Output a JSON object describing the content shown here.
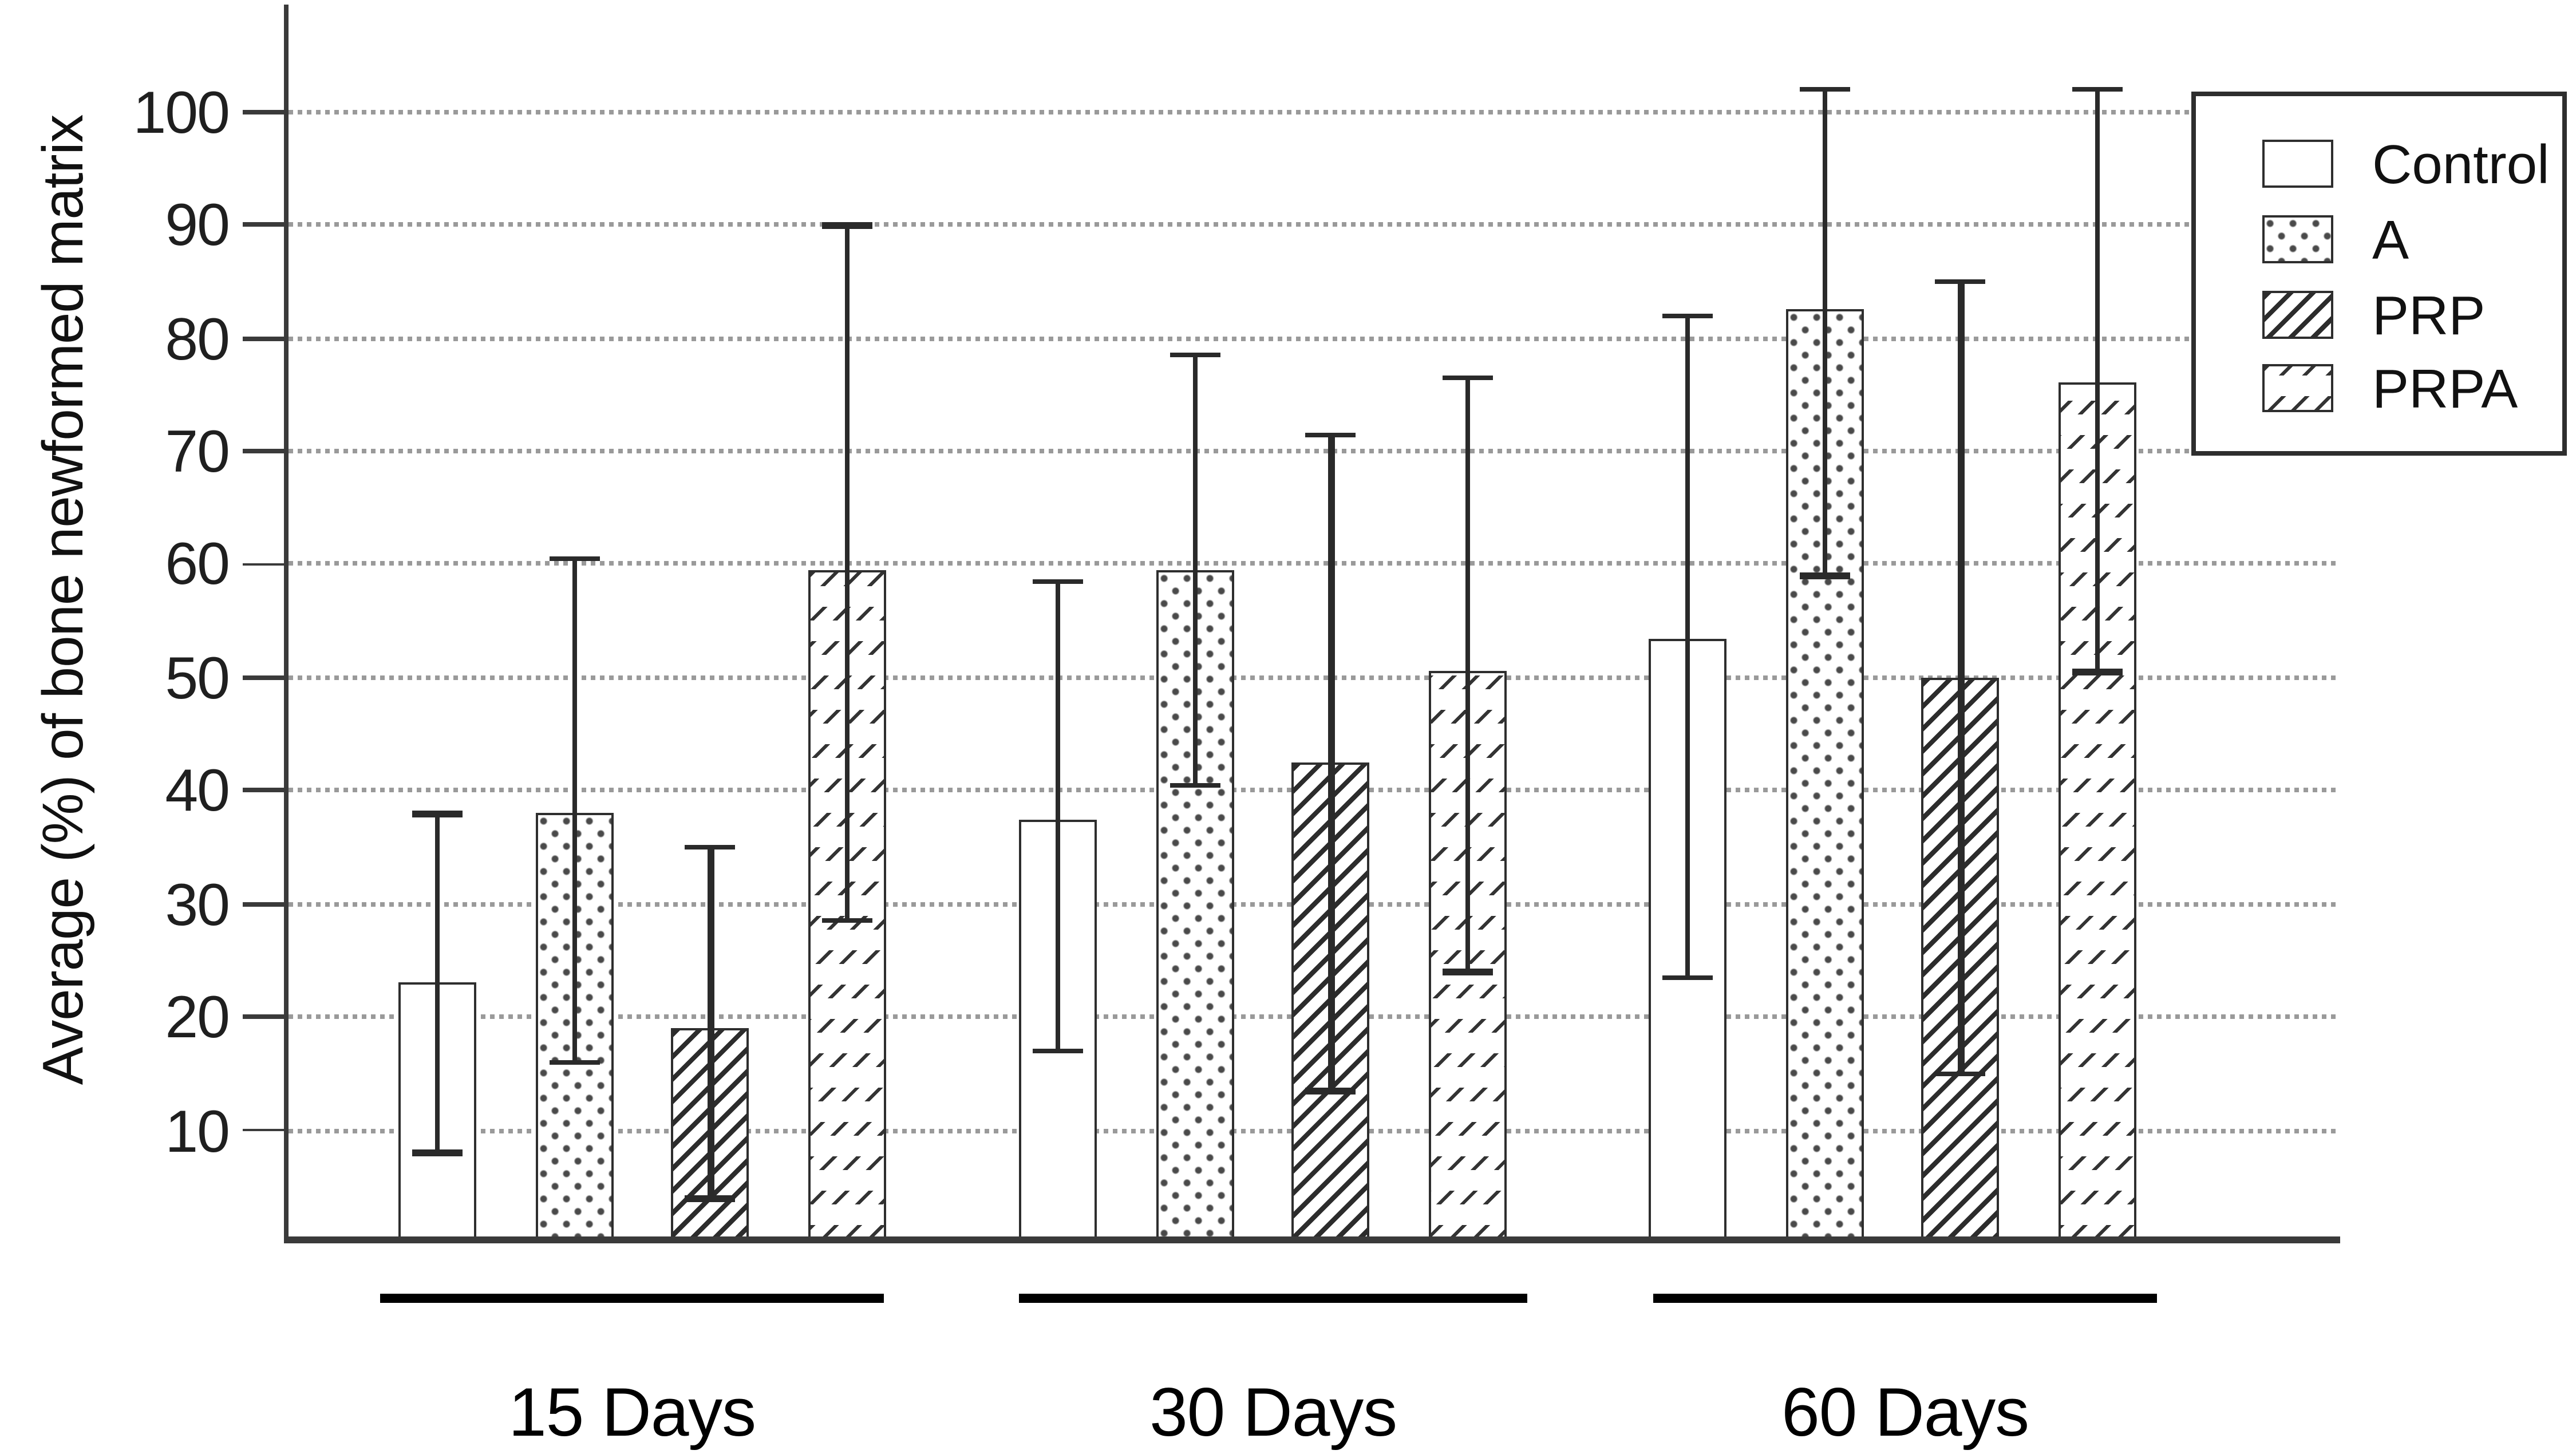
{
  "chart_data": {
    "type": "bar",
    "title": "",
    "xlabel": "",
    "ylabel": "Average (%) of bone newformed matrix",
    "categories": [
      "15 Days",
      "30 Days",
      "60 Days"
    ],
    "yticks": [
      100,
      90,
      80,
      70,
      60,
      50,
      40,
      30,
      20,
      10
    ],
    "ylim": [
      0,
      109
    ],
    "grid": true,
    "grid_style": "dotted-gray-horizontal",
    "legend_position": "top-right",
    "error_bars": true,
    "series": [
      {
        "name": "Control",
        "pattern": "plain",
        "values": [
          23,
          37.5,
          53.5
        ],
        "error_low": [
          8,
          17,
          23.5
        ],
        "error_high": [
          38,
          58.5,
          82
        ]
      },
      {
        "name": "A",
        "pattern": "dots",
        "values": [
          38,
          59.5,
          82.5
        ],
        "error_low": [
          16,
          40.5,
          59
        ],
        "error_high": [
          60.5,
          78.5,
          102
        ]
      },
      {
        "name": "PRP",
        "pattern": "heavy-diagonal",
        "values": [
          19,
          42.5,
          50
        ],
        "error_low": [
          4,
          13.5,
          15
        ],
        "error_high": [
          35,
          71.5,
          85
        ]
      },
      {
        "name": "PRPA",
        "pattern": "light-diagonal",
        "values": [
          59.5,
          50.5,
          76
        ],
        "error_low": [
          28.5,
          24,
          50.5
        ],
        "error_high": [
          90,
          76.5,
          102
        ]
      }
    ],
    "colors": {
      "axis": "#3a3a3a",
      "gridline": "#9a9a9a",
      "bar_border": "#2e2e2e",
      "error_bar": "#2a2a2a",
      "text": "#111111",
      "background": "#ffffff"
    }
  }
}
